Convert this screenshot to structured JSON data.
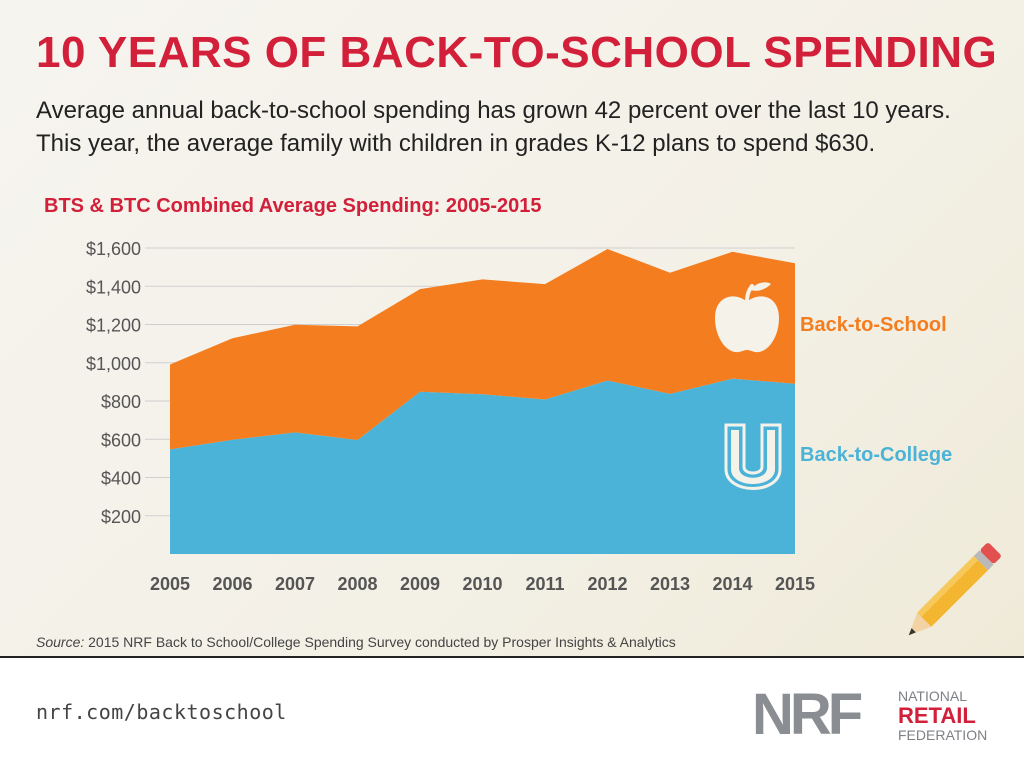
{
  "title": "10 YEARS OF BACK-TO-SCHOOL SPENDING",
  "subtitle": "Average annual back-to-school spending has grown 42 percent over the last 10 years. This year, the average family with children in grades K-12 plans to spend $630.",
  "footer": {
    "source_label": "Source:",
    "source_text": " 2015 NRF Back to School/College Spending Survey conducted by Prosper Insights & Analytics",
    "website": "nrf.com/backtoschool",
    "logo": {
      "mark": "NRF",
      "line1": "NATIONAL",
      "line2": "RETAIL",
      "line3": "FEDERATION"
    }
  },
  "colors": {
    "accent": "#d3203a",
    "college": "#4cb3d8",
    "school": "#f47d20",
    "grid": "#cfcfcf"
  },
  "chart_data": {
    "type": "area",
    "title": "BTS & BTC Combined Average Spending: 2005-2015",
    "x": [
      "2005",
      "2006",
      "2007",
      "2008",
      "2009",
      "2010",
      "2011",
      "2012",
      "2013",
      "2014",
      "2015"
    ],
    "ylim": [
      0,
      1600
    ],
    "yticks": [
      200,
      400,
      600,
      800,
      1000,
      1200,
      1400,
      1600
    ],
    "ytick_labels": [
      "$200",
      "$400",
      "$600",
      "$800",
      "$1,000",
      "$1,200",
      "$1,400",
      "$1,600"
    ],
    "stacked": true,
    "series": [
      {
        "name": "Back-to-College",
        "label": "Back-to-College",
        "color": "#4cb3d8",
        "icon": "u-letter-icon",
        "values": [
          547,
          597,
          636,
          596,
          848,
          835,
          808,
          907,
          837,
          917,
          890
        ]
      },
      {
        "name": "Back-to-School",
        "label": "Back-to-School",
        "color": "#f47d20",
        "icon": "apple-icon",
        "values": [
          444,
          531,
          563,
          594,
          537,
          601,
          603,
          688,
          634,
          663,
          630
        ]
      }
    ]
  }
}
